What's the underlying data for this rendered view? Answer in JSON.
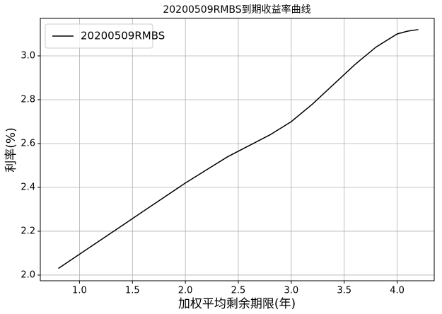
{
  "chart_data": {
    "type": "line",
    "title": "20200509RMBS到期收益率曲线",
    "x_label": "加权平均剩余期限(年)",
    "y_label": "利率(%)",
    "x": [
      0.8,
      1.0,
      1.2,
      1.4,
      1.6,
      1.8,
      2.0,
      2.2,
      2.4,
      2.6,
      2.8,
      3.0,
      3.2,
      3.4,
      3.6,
      3.8,
      4.0,
      4.1,
      4.2
    ],
    "series": [
      {
        "name": "20200509RMBS",
        "color": "#000000",
        "values": [
          2.03,
          2.095,
          2.16,
          2.225,
          2.29,
          2.355,
          2.42,
          2.48,
          2.54,
          2.59,
          2.64,
          2.7,
          2.78,
          2.87,
          2.96,
          3.04,
          3.1,
          3.113,
          3.12
        ]
      }
    ],
    "xlim": [
      0.63,
      4.35
    ],
    "ylim": [
      1.974,
      3.171
    ],
    "xticks": [
      {
        "value": 1,
        "label": "1.0"
      },
      1.5,
      {
        "value": 2,
        "label": "2.0"
      },
      2.5,
      {
        "value": 3,
        "label": "3.0"
      },
      3.5,
      {
        "value": 4,
        "label": "4.0"
      }
    ],
    "yticks": [
      {
        "value": 2,
        "label": "2.0"
      },
      2.2,
      2.4,
      2.6,
      2.8,
      {
        "value": 3,
        "label": "3.0"
      }
    ],
    "grid": true,
    "legend": "upper-left"
  }
}
